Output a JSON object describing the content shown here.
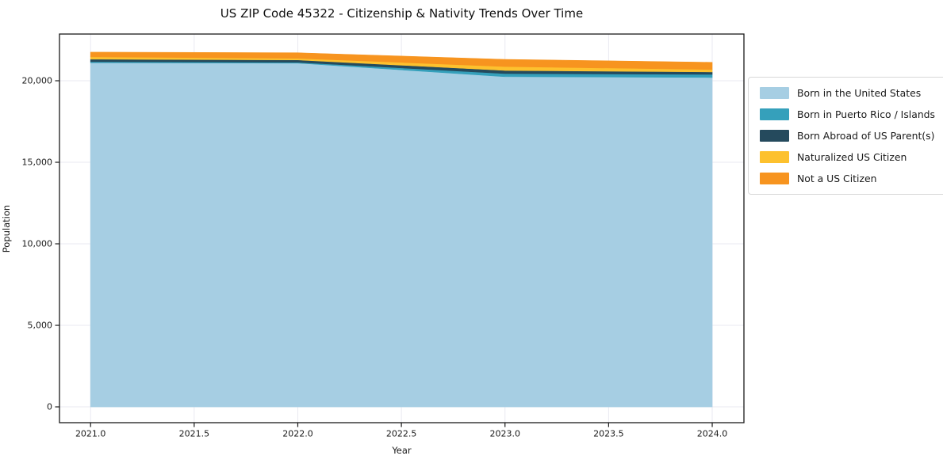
{
  "title": "US ZIP Code 45322 - Citizenship & Nativity Trends Over Time",
  "chart_data": {
    "type": "area",
    "stacked": true,
    "title": "US ZIP Code 45322 - Citizenship & Nativity Trends Over Time",
    "xlabel": "Year",
    "ylabel": "Population",
    "x": [
      2021,
      2022,
      2023,
      2024
    ],
    "series": [
      {
        "name": "Born in the United States",
        "color": "#a6cee3",
        "values": [
          21100,
          21080,
          20250,
          20200
        ]
      },
      {
        "name": "Born in Puerto Rico / Islands",
        "color": "#35a0bb",
        "values": [
          70,
          50,
          190,
          190
        ]
      },
      {
        "name": "Born Abroad of US Parent(s)",
        "color": "#254a5d",
        "values": [
          150,
          145,
          190,
          150
        ]
      },
      {
        "name": "Naturalized US Citizen",
        "color": "#fdc12e",
        "values": [
          145,
          100,
          240,
          150
        ]
      },
      {
        "name": "Not a US Citizen",
        "color": "#f7941f",
        "values": [
          290,
          340,
          440,
          440
        ]
      }
    ],
    "totals": [
      21755,
      21715,
      21310,
      21130
    ],
    "xlim": [
      2020.85,
      2024.153
    ],
    "ylim": [
      -970,
      22865
    ],
    "x_ticks": [
      2021.0,
      2021.5,
      2022.0,
      2022.5,
      2023.0,
      2023.5,
      2024.0
    ],
    "x_tick_labels": [
      "2021.0",
      "2021.5",
      "2022.0",
      "2022.5",
      "2023.0",
      "2023.5",
      "2024.0"
    ],
    "y_ticks": [
      0,
      5000,
      10000,
      15000,
      20000
    ],
    "y_tick_labels": [
      "0",
      "5,000",
      "10,000",
      "15,000",
      "20,000"
    ],
    "grid": true,
    "legend_position": "right outside"
  },
  "colors": {
    "background": "#ffffff",
    "grid": "#e9e9f1",
    "spine": "#1a1a1a",
    "tick_text": "#1a1a1a"
  }
}
